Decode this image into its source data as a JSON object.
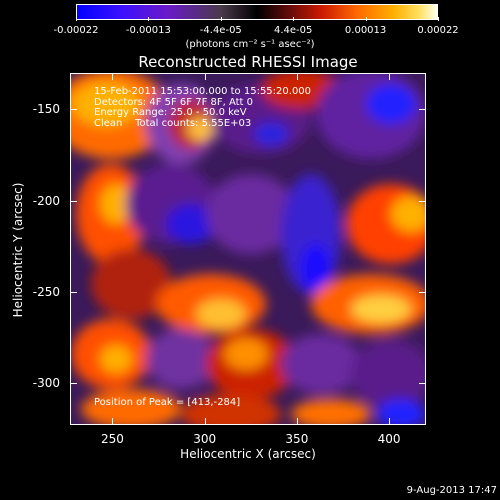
{
  "colorbar": {
    "ticks": [
      {
        "label": "-0.00022",
        "pos": 0.0
      },
      {
        "label": "-0.00013",
        "pos": 0.2
      },
      {
        "label": "-4.4e-05",
        "pos": 0.4
      },
      {
        "label": "4.4e-05",
        "pos": 0.6
      },
      {
        "label": "0.00013",
        "pos": 0.8
      },
      {
        "label": "0.00022",
        "pos": 1.0
      }
    ],
    "units": "(photons cm⁻² s⁻¹ asec⁻²)"
  },
  "plot": {
    "title": "Reconstructed RHESSI Image",
    "info_lines": [
      "15-Feb-2011 15:53:00.000 to 15:55:20.000",
      "Detectors: 4F 5F 6F 7F 8F, Att 0",
      "Energy Range: 25.0 - 50.0 keV",
      "Clean    Total counts: 5.55E+03"
    ],
    "peak_text": "Position of Peak = [413,-284]",
    "xlabel": "Heliocentric X (arcsec)",
    "ylabel": "Heliocentric Y (arcsec)",
    "x_ticks": [
      "250",
      "300",
      "350",
      "400"
    ],
    "y_ticks": [
      "-150",
      "-200",
      "-250",
      "-300"
    ],
    "x_range": [
      227,
      420
    ],
    "y_range": [
      -323,
      -130
    ]
  },
  "timestamp": "9-Aug-2013 17:47"
}
